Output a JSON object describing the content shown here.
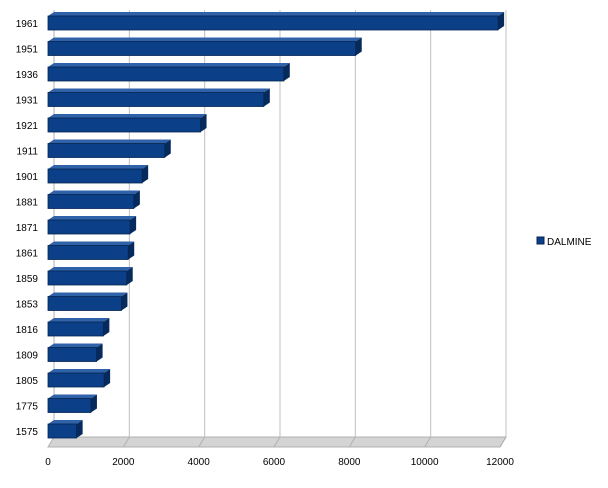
{
  "chart_data": {
    "type": "bar",
    "orientation": "horizontal",
    "categories": [
      "1961",
      "1951",
      "1936",
      "1931",
      "1921",
      "1911",
      "1901",
      "1881",
      "1871",
      "1861",
      "1859",
      "1853",
      "1816",
      "1809",
      "1805",
      "1775",
      "1575"
    ],
    "series": [
      {
        "name": "DALMINE",
        "color": "#0b3f88",
        "values": [
          11950,
          8170,
          6260,
          5730,
          4050,
          3100,
          2500,
          2280,
          2180,
          2130,
          2090,
          1950,
          1470,
          1290,
          1490,
          1140,
          760
        ]
      }
    ],
    "x_ticks": [
      "0",
      "2000",
      "4000",
      "6000",
      "8000",
      "10000",
      "12000"
    ],
    "xlim": [
      0,
      12000
    ],
    "grid": "vertical",
    "legend": "right",
    "title": "",
    "xlabel": "",
    "ylabel": ""
  }
}
